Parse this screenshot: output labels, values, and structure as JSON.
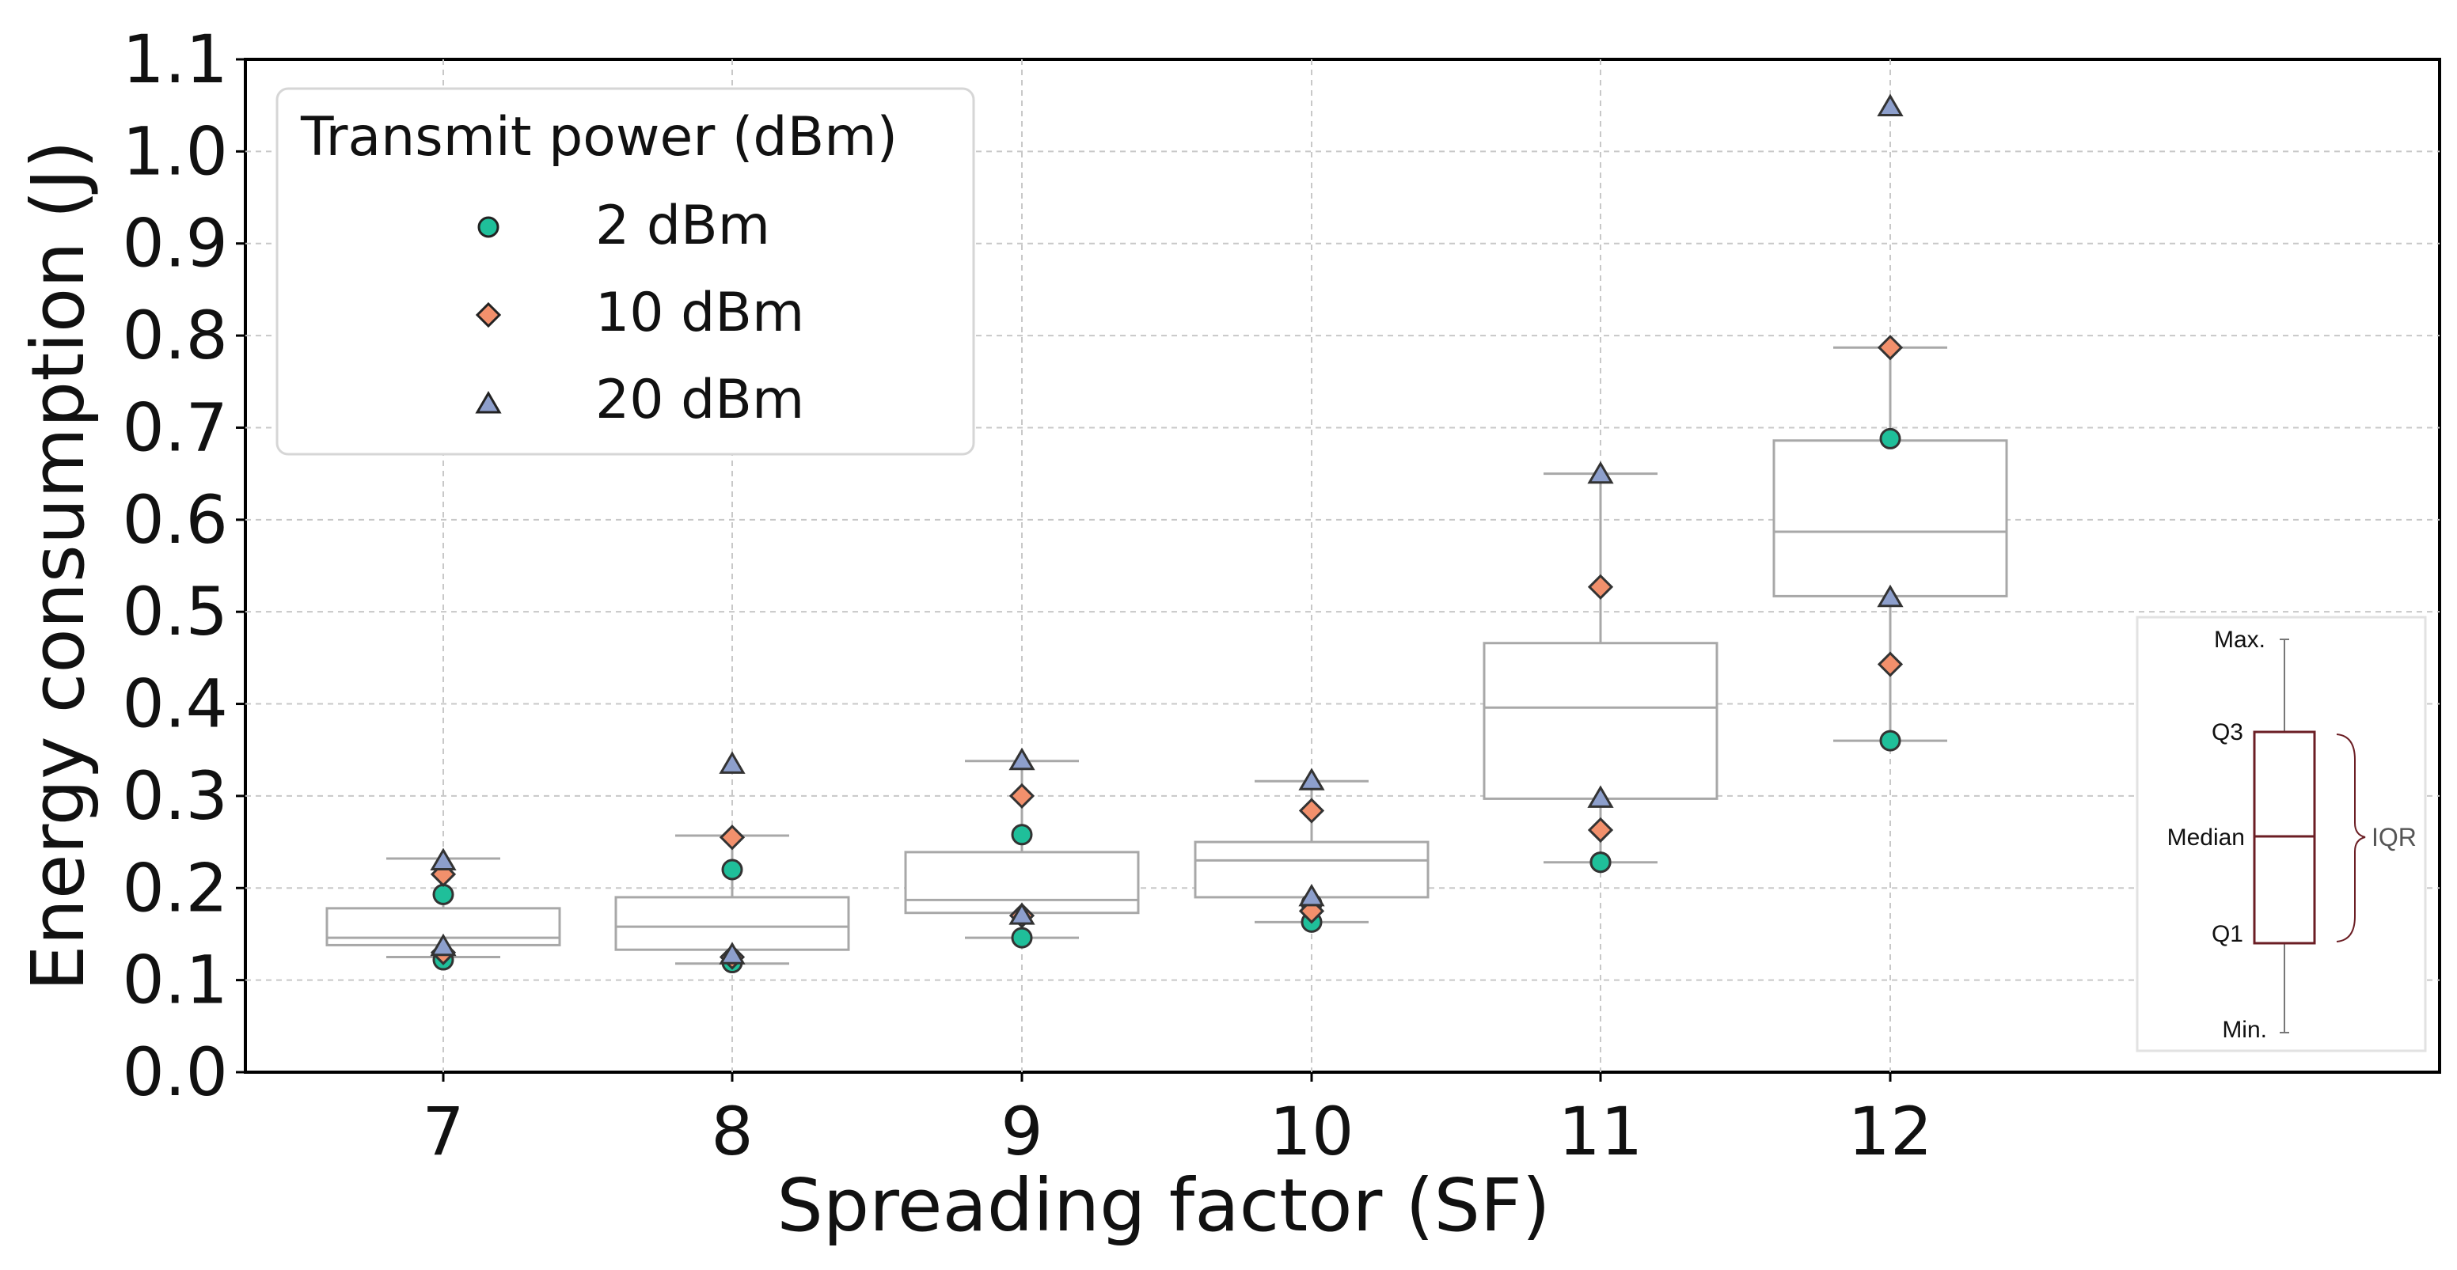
{
  "chart_data": {
    "type": "box",
    "xlabel": "Spreading factor (SF)",
    "ylabel": "Energy consumption (J)",
    "ylim": [
      0.0,
      1.1
    ],
    "yticks": [
      "0.0",
      "0.1",
      "0.2",
      "0.3",
      "0.4",
      "0.5",
      "0.6",
      "0.7",
      "0.8",
      "0.9",
      "1.0",
      "1.1"
    ],
    "categories": [
      "7",
      "8",
      "9",
      "10",
      "11",
      "12"
    ],
    "grid": true,
    "boxes": [
      {
        "category": "7",
        "min": 0.125,
        "q1": 0.138,
        "median": 0.146,
        "q3": 0.178,
        "max": 0.232
      },
      {
        "category": "8",
        "min": 0.118,
        "q1": 0.133,
        "median": 0.158,
        "q3": 0.19,
        "max": 0.257
      },
      {
        "category": "9",
        "min": 0.146,
        "q1": 0.173,
        "median": 0.187,
        "q3": 0.239,
        "max": 0.338
      },
      {
        "category": "10",
        "min": 0.163,
        "q1": 0.19,
        "median": 0.23,
        "q3": 0.25,
        "max": 0.316
      },
      {
        "category": "11",
        "min": 0.228,
        "q1": 0.297,
        "median": 0.396,
        "q3": 0.466,
        "max": 0.65
      },
      {
        "category": "12",
        "min": 0.36,
        "q1": 0.517,
        "median": 0.587,
        "q3": 0.686,
        "max": 0.787
      }
    ],
    "series": [
      {
        "name": "2 dBm",
        "marker": "circle",
        "color": "#1fbf9a",
        "values": [
          [
            0.122,
            0.193
          ],
          [
            0.119,
            0.22
          ],
          [
            0.146,
            0.258
          ],
          [
            0.163,
            0.183
          ],
          [
            0.228,
            0.228
          ],
          [
            0.36,
            0.688
          ]
        ]
      },
      {
        "name": "10 dBm",
        "marker": "diamond",
        "color": "#f2906c",
        "values": [
          [
            0.13,
            0.215
          ],
          [
            0.125,
            0.255
          ],
          [
            0.17,
            0.3
          ],
          [
            0.175,
            0.284
          ],
          [
            0.263,
            0.527
          ],
          [
            0.443,
            0.787
          ]
        ]
      },
      {
        "name": "20 dBm",
        "marker": "triangle",
        "color": "#8d9fcc",
        "values": [
          [
            0.136,
            0.229
          ],
          [
            0.127,
            0.334
          ],
          [
            0.17,
            0.338
          ],
          [
            0.19,
            0.316
          ],
          [
            0.297,
            0.649
          ],
          [
            0.515,
            1.048
          ]
        ]
      }
    ],
    "legend": {
      "title": "Transmit power (dBm)",
      "position": "top-left"
    }
  },
  "key": {
    "labels": {
      "max": "Max.",
      "q3": "Q3",
      "median": "Median",
      "q1": "Q1",
      "min": "Min.",
      "iqr": "IQR"
    },
    "color": "#6b1e24"
  }
}
